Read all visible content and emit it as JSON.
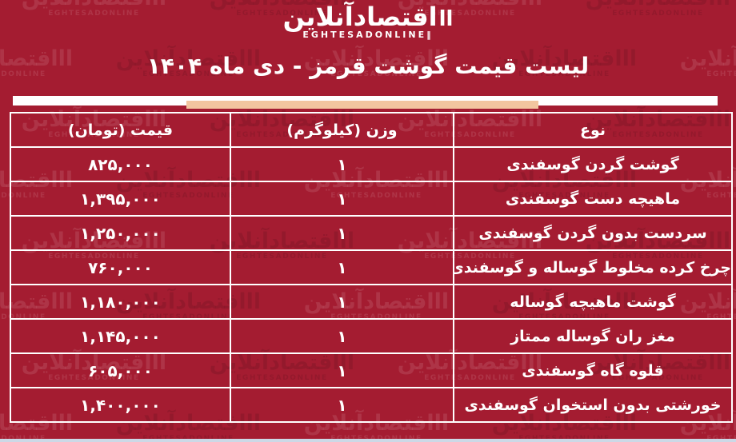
{
  "brand": {
    "name_fa": "اقتصادآنلاین",
    "name_en": "EGHTESADONLINE",
    "bars": "اا",
    "en_bar": "‖"
  },
  "title": "لیست قیمت گوشت قرمز - دی ماه ۱۴۰۴",
  "table": {
    "headers": {
      "type": "نوع",
      "weight": "وزن (کیلوگرم)",
      "price": "قیمت (تومان)"
    },
    "rows": [
      {
        "type": "گوشت گردن گوسفندی",
        "weight": "۱",
        "price": "۸۲۵,۰۰۰"
      },
      {
        "type": "ماهیچه دست گوسفندی",
        "weight": "۱",
        "price": "۱,۳۹۵,۰۰۰"
      },
      {
        "type": "سردست بدون گردن گوسفندی",
        "weight": "۱",
        "price": "۱,۲۵۰,۰۰۰"
      },
      {
        "type": "چرخ کرده مخلوط گوساله و گوسفندی",
        "weight": "۱",
        "price": "۷۶۰,۰۰۰"
      },
      {
        "type": "گوشت ماهیچه گوساله",
        "weight": "۱",
        "price": "۱,۱۸۰,۰۰۰"
      },
      {
        "type": "مغز ران گوساله ممتاز",
        "weight": "۱",
        "price": "۱,۱۴۵,۰۰۰"
      },
      {
        "type": "قلوه گاه گوسفندی",
        "weight": "۱",
        "price": "۶۰۵,۰۰۰"
      },
      {
        "type": "خورشتی بدون استخوان گوسفندی",
        "weight": "۱",
        "price": "۱,۴۰۰,۰۰۰"
      }
    ]
  },
  "chart_data": {
    "type": "table",
    "title": "لیست قیمت گوشت قرمز - دی ماه ۱۴۰۴",
    "columns": [
      "نوع",
      "وزن (کیلوگرم)",
      "قیمت (تومان)"
    ],
    "rows": [
      [
        "گوشت گردن گوسفندی",
        1,
        825000
      ],
      [
        "ماهیچه دست گوسفندی",
        1,
        1395000
      ],
      [
        "سردست بدون گردن گوسفندی",
        1,
        1250000
      ],
      [
        "چرخ کرده مخلوط گوساله و گوسفندی",
        1,
        760000
      ],
      [
        "گوشت ماهیچه گوساله",
        1,
        1180000
      ],
      [
        "مغز ران گوساله ممتاز",
        1,
        1145000
      ],
      [
        "قلوه گاه گوسفندی",
        1,
        605000
      ],
      [
        "خورشتی بدون استخوان گوسفندی",
        1,
        1400000
      ]
    ],
    "units": {
      "weight": "kg",
      "price": "Toman"
    }
  },
  "colors": {
    "background": "#A41C31",
    "accent_bar": "#F2C59F",
    "text": "#FFFFFF",
    "bottom_strip": "#CCD8E6"
  }
}
